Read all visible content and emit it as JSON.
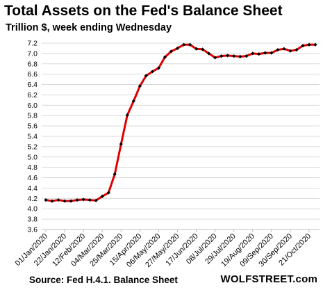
{
  "header": {
    "title": "Total Assets on the Fed's Balance Sheet",
    "subtitle": "Trillion $, week ending Wednesday"
  },
  "footer": {
    "source": "Source: Fed H.4.1. Balance Sheet",
    "brand": "WOLFSTREET.com"
  },
  "colors": {
    "line": "#e00000",
    "marker": "#000000",
    "grid": "#d9d9d9",
    "axis": "#bfbfbf"
  },
  "chart_data": {
    "type": "line",
    "title": "Total Assets on the Fed's Balance Sheet",
    "subtitle": "Trillion $, week ending Wednesday",
    "xlabel": "",
    "ylabel": "",
    "ylim": [
      3.6,
      7.2
    ],
    "yticks": [
      3.6,
      3.8,
      4.0,
      4.2,
      4.4,
      4.6,
      4.8,
      5.0,
      5.2,
      5.4,
      5.6,
      5.8,
      6.0,
      6.2,
      6.4,
      6.6,
      6.8,
      7.0,
      7.2
    ],
    "grid": true,
    "legend": "none",
    "x_tick_labels": [
      "01/Jan/2020",
      "22/Jan/2020",
      "12/Feb/2020",
      "04/Mar/2020",
      "25/Mar/2020",
      "15/Apr/2020",
      "06/May/2020",
      "27/May/2020",
      "17/Jun/2020",
      "08/Jul/2020",
      "29/Jul/2020",
      "19/Aug/2020",
      "09/Sep/2020",
      "30/Sep/2020",
      "21/Oct/2020"
    ],
    "x": [
      "01/Jan/2020",
      "08/Jan/2020",
      "15/Jan/2020",
      "22/Jan/2020",
      "29/Jan/2020",
      "05/Feb/2020",
      "12/Feb/2020",
      "19/Feb/2020",
      "26/Feb/2020",
      "04/Mar/2020",
      "11/Mar/2020",
      "18/Mar/2020",
      "25/Mar/2020",
      "01/Apr/2020",
      "08/Apr/2020",
      "15/Apr/2020",
      "22/Apr/2020",
      "29/Apr/2020",
      "06/May/2020",
      "13/May/2020",
      "20/May/2020",
      "27/May/2020",
      "03/Jun/2020",
      "10/Jun/2020",
      "17/Jun/2020",
      "24/Jun/2020",
      "01/Jul/2020",
      "08/Jul/2020",
      "15/Jul/2020",
      "22/Jul/2020",
      "29/Jul/2020",
      "05/Aug/2020",
      "12/Aug/2020",
      "19/Aug/2020",
      "26/Aug/2020",
      "02/Sep/2020",
      "09/Sep/2020",
      "16/Sep/2020",
      "23/Sep/2020",
      "30/Sep/2020",
      "07/Oct/2020",
      "14/Oct/2020",
      "21/Oct/2020",
      "28/Oct/2020"
    ],
    "series": [
      {
        "values": [
          4.17,
          4.15,
          4.17,
          4.15,
          4.15,
          4.17,
          4.18,
          4.17,
          4.16,
          4.24,
          4.31,
          4.67,
          5.25,
          5.81,
          6.08,
          6.37,
          6.57,
          6.65,
          6.72,
          6.93,
          7.04,
          7.1,
          7.17,
          7.17,
          7.09,
          7.08,
          7.0,
          6.92,
          6.95,
          6.96,
          6.95,
          6.94,
          6.95,
          7.0,
          6.99,
          7.01,
          7.01,
          7.07,
          7.09,
          7.05,
          7.07,
          7.15,
          7.17,
          7.17
        ]
      }
    ]
  }
}
